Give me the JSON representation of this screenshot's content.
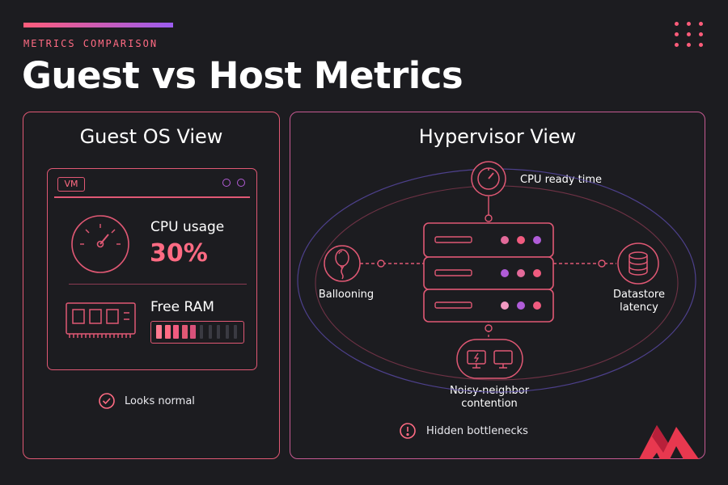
{
  "header": {
    "eyebrow": "METRICS COMPARISON",
    "title": "Guest vs Host Metrics"
  },
  "guest_panel": {
    "title": "Guest OS View",
    "vm_badge": "VM",
    "cpu_label": "CPU usage",
    "cpu_value": "30%",
    "ram_label": "Free RAM",
    "ram_fill_fraction": 0.5,
    "status_text": "Looks normal",
    "status_icon": "check-circle-icon"
  },
  "host_panel": {
    "title": "Hypervisor View",
    "nodes": {
      "cpu_ready": "CPU ready time",
      "ballooning": "Ballooning",
      "datastore_line1": "Datastore",
      "datastore_line2": "latency",
      "noisy_line1": "Noisy-neighbor",
      "noisy_line2": "contention"
    },
    "status_text": "Hidden bottlenecks",
    "status_icon": "alert-circle-icon"
  },
  "colors": {
    "background": "#1c1c20",
    "accent_pink": "#ff5c7a",
    "accent_purple": "#9b5cf0",
    "panel_border": "#e05874"
  }
}
